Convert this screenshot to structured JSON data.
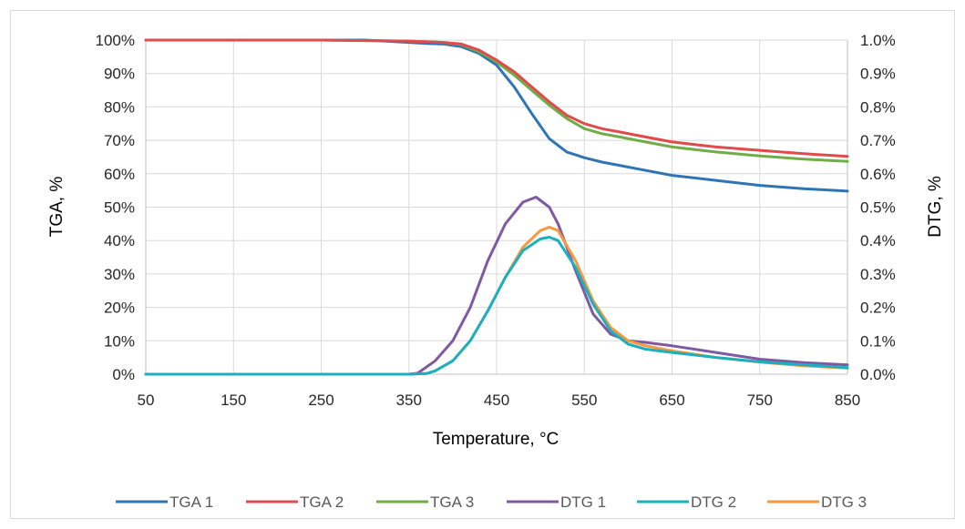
{
  "chart_data": {
    "type": "line",
    "xlabel": "Temperature, °C",
    "ylabel_left": "TGA, %",
    "ylabel_right": "DTG, %",
    "xlim": [
      50,
      850
    ],
    "ylim_left": [
      0,
      100
    ],
    "ylim_right": [
      0,
      1.0
    ],
    "x_ticks": [
      "50",
      "150",
      "250",
      "350",
      "450",
      "550",
      "650",
      "750",
      "850"
    ],
    "y_left_ticks": [
      "0%",
      "10%",
      "20%",
      "30%",
      "40%",
      "50%",
      "60%",
      "70%",
      "80%",
      "90%",
      "100%"
    ],
    "y_right_ticks": [
      "0.0%",
      "0.1%",
      "0.2%",
      "0.3%",
      "0.4%",
      "0.5%",
      "0.6%",
      "0.7%",
      "0.8%",
      "0.9%",
      "1.0%"
    ],
    "grid": true,
    "legend_position": "bottom",
    "series": [
      {
        "name": "TGA 1",
        "axis": "left",
        "color": "#2e75b6",
        "x": [
          50,
          150,
          250,
          300,
          350,
          370,
          390,
          410,
          430,
          450,
          470,
          490,
          510,
          530,
          550,
          570,
          590,
          610,
          650,
          700,
          750,
          800,
          850
        ],
        "y": [
          100,
          100,
          100,
          100,
          99.3,
          99,
          98.8,
          98,
          96,
          92.5,
          86,
          78,
          70.5,
          66.5,
          64.8,
          63.5,
          62.5,
          61.5,
          59.5,
          58,
          56.5,
          55.5,
          54.8
        ]
      },
      {
        "name": "TGA 2",
        "axis": "left",
        "color": "#e04b4b",
        "x": [
          50,
          150,
          250,
          350,
          390,
          410,
          430,
          450,
          470,
          490,
          510,
          530,
          550,
          570,
          590,
          610,
          650,
          700,
          750,
          800,
          850
        ],
        "y": [
          100,
          100,
          100,
          99.7,
          99.3,
          98.8,
          97,
          94,
          90.5,
          86,
          81.5,
          77.5,
          75,
          73.5,
          72.5,
          71.5,
          69.5,
          68,
          67,
          66,
          65.2
        ]
      },
      {
        "name": "TGA 3",
        "axis": "left",
        "color": "#70ad47",
        "x": [
          50,
          150,
          250,
          350,
          390,
          410,
          430,
          450,
          470,
          490,
          510,
          530,
          550,
          570,
          590,
          610,
          650,
          700,
          750,
          800,
          850
        ],
        "y": [
          100,
          100,
          100,
          99.7,
          99.3,
          98.6,
          96.5,
          93.5,
          89.5,
          85,
          80.5,
          76.5,
          73.5,
          72,
          71,
          70,
          68,
          66.5,
          65.3,
          64.4,
          63.7
        ]
      },
      {
        "name": "DTG 1",
        "axis": "right",
        "color": "#7f5aa2",
        "x": [
          50,
          150,
          250,
          350,
          360,
          380,
          400,
          420,
          440,
          460,
          480,
          495,
          510,
          520,
          540,
          560,
          580,
          600,
          620,
          650,
          700,
          750,
          800,
          850
        ],
        "y": [
          0,
          0,
          0,
          0,
          0.003,
          0.04,
          0.1,
          0.2,
          0.34,
          0.45,
          0.515,
          0.53,
          0.5,
          0.45,
          0.31,
          0.18,
          0.12,
          0.1,
          0.095,
          0.085,
          0.065,
          0.045,
          0.035,
          0.028
        ]
      },
      {
        "name": "DTG 2",
        "axis": "right",
        "color": "#1ab0c0",
        "x": [
          50,
          150,
          250,
          350,
          370,
          380,
          400,
          420,
          440,
          460,
          480,
          500,
          510,
          520,
          540,
          560,
          580,
          600,
          620,
          650,
          700,
          750,
          800,
          850
        ],
        "y": [
          0,
          0,
          0,
          0,
          0.002,
          0.01,
          0.04,
          0.1,
          0.19,
          0.29,
          0.37,
          0.405,
          0.41,
          0.4,
          0.32,
          0.21,
          0.13,
          0.09,
          0.075,
          0.065,
          0.05,
          0.037,
          0.028,
          0.02
        ]
      },
      {
        "name": "DTG 3",
        "axis": "right",
        "color": "#f6983e",
        "x": [
          50,
          150,
          250,
          350,
          370,
          380,
          400,
          420,
          440,
          460,
          480,
          500,
          510,
          520,
          540,
          560,
          580,
          600,
          620,
          650,
          700,
          750,
          800,
          850
        ],
        "y": [
          0,
          0,
          0,
          0,
          0.002,
          0.01,
          0.04,
          0.1,
          0.19,
          0.29,
          0.38,
          0.43,
          0.44,
          0.43,
          0.34,
          0.22,
          0.14,
          0.1,
          0.085,
          0.07,
          0.05,
          0.036,
          0.025,
          0.018
        ]
      }
    ]
  }
}
